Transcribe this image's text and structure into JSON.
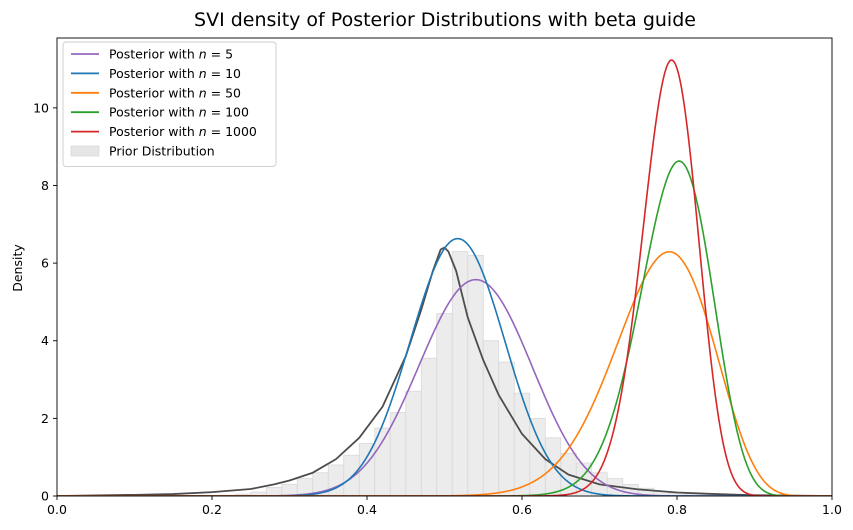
{
  "chart_data": {
    "type": "line",
    "title": "SVI density of Posterior Distributions with beta guide",
    "xlabel": "",
    "ylabel": "Density",
    "xlim": [
      0.0,
      1.0
    ],
    "ylim": [
      0,
      11.8
    ],
    "xticks": [
      "0.0",
      "0.2",
      "0.4",
      "0.6",
      "0.8",
      "1.0"
    ],
    "yticks": [
      "0",
      "2",
      "4",
      "6",
      "8",
      "10"
    ],
    "legend_position": "top-left",
    "series": [
      {
        "name": "Posterior with n = 5",
        "legend_prefix": "Posterior with ",
        "legend_var": "n",
        "legend_rest": " = 5",
        "color": "#9467bd",
        "dist": "beta",
        "a": 26.4,
        "b": 22.6
      },
      {
        "name": "Posterior with n = 10",
        "legend_prefix": "Posterior with ",
        "legend_var": "n",
        "legend_rest": " = 10",
        "color": "#1f77b4",
        "dist": "beta",
        "a": 35.9,
        "b": 33.6
      },
      {
        "name": "Posterior with n = 50",
        "legend_prefix": "Posterior with ",
        "legend_var": "n",
        "legend_rest": " = 50",
        "color": "#ff7f0e",
        "dist": "beta",
        "a": 32.7,
        "b": 9.43
      },
      {
        "name": "Posterior with n = 100",
        "legend_prefix": "Posterior with ",
        "legend_var": "n",
        "legend_rest": " = 100",
        "color": "#2ca02c",
        "dist": "beta",
        "a": 59.6,
        "b": 15.4
      },
      {
        "name": "Posterior with n = 1000",
        "legend_prefix": "Posterior with ",
        "legend_var": "n",
        "legend_rest": " = 1000",
        "color": "#d62728",
        "dist": "beta",
        "a": 103.3,
        "b": 27.7
      }
    ],
    "prior_kde": {
      "color": "#4d4d4d",
      "x": [
        0.0,
        0.1,
        0.15,
        0.2,
        0.25,
        0.28,
        0.3,
        0.33,
        0.36,
        0.39,
        0.42,
        0.45,
        0.47,
        0.485,
        0.495,
        0.5,
        0.505,
        0.515,
        0.53,
        0.55,
        0.57,
        0.6,
        0.63,
        0.66,
        0.7,
        0.75,
        0.8,
        0.85,
        0.9,
        1.0
      ],
      "y": [
        0.0,
        0.03,
        0.05,
        0.1,
        0.18,
        0.3,
        0.4,
        0.6,
        0.95,
        1.5,
        2.3,
        3.6,
        4.8,
        5.8,
        6.35,
        6.4,
        6.3,
        5.8,
        4.6,
        3.5,
        2.6,
        1.6,
        0.95,
        0.55,
        0.3,
        0.17,
        0.09,
        0.05,
        0.02,
        0.0
      ]
    },
    "prior_histogram": {
      "name": "Prior Distribution",
      "color": "#e6e6e6",
      "edge_color": "#d9d9d9",
      "bin_start": 0.21,
      "bin_width": 0.02,
      "values": [
        0.02,
        0.05,
        0.1,
        0.22,
        0.3,
        0.45,
        0.6,
        0.8,
        1.05,
        1.35,
        1.75,
        2.15,
        2.7,
        3.55,
        4.7,
        6.3,
        6.2,
        4.0,
        3.45,
        2.65,
        2.0,
        1.5,
        1.1,
        0.85,
        0.6,
        0.45,
        0.3,
        0.2,
        0.12,
        0.08,
        0.05,
        0.03,
        0.02,
        0.01
      ]
    }
  }
}
